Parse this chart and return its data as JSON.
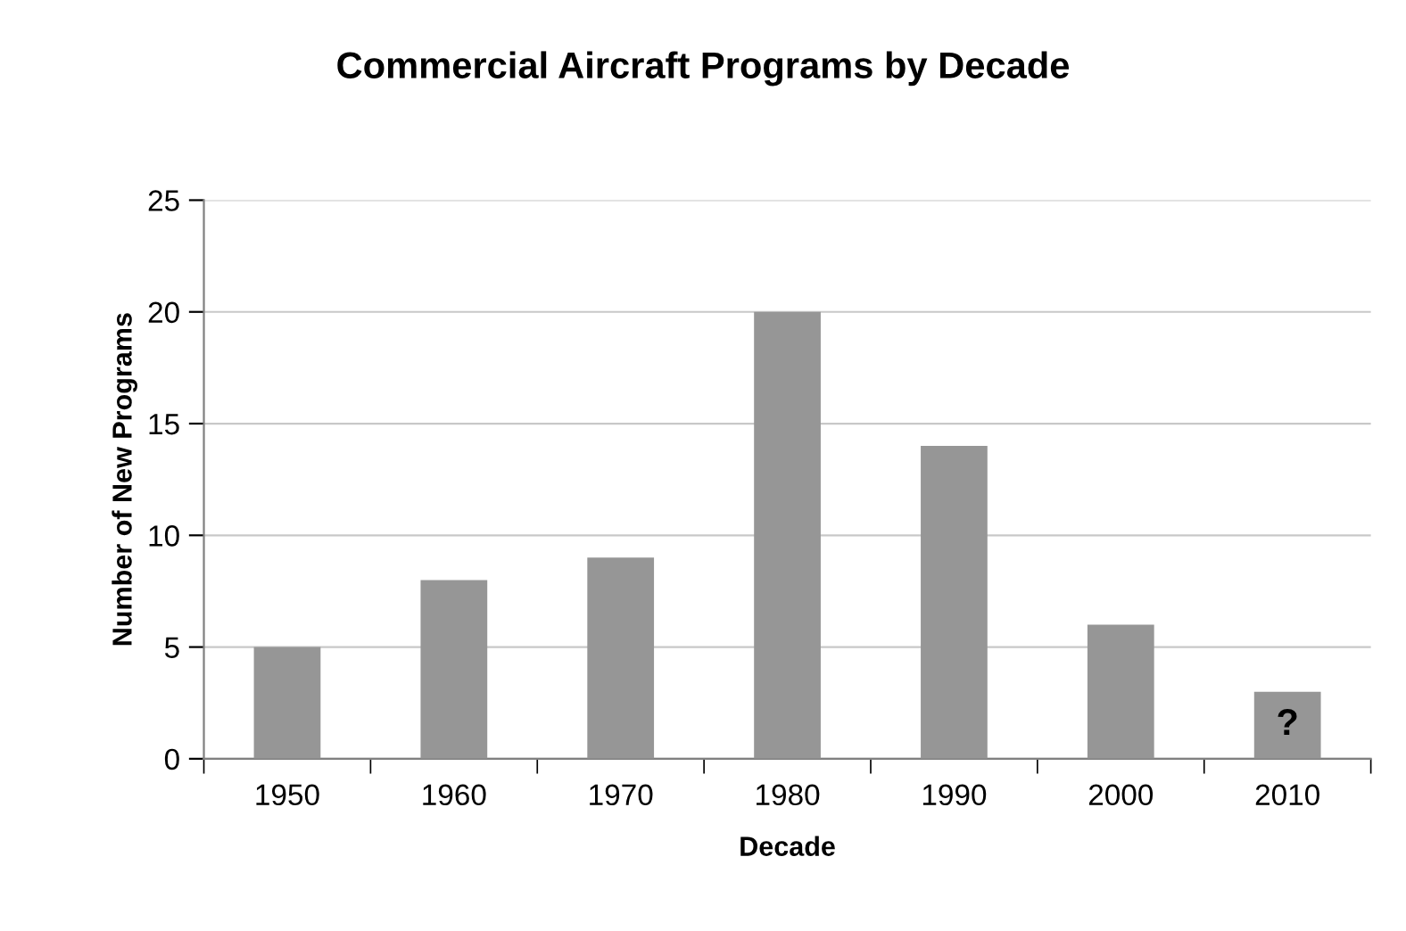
{
  "chart_data": {
    "type": "bar",
    "title": "Commercial Aircraft Programs by Decade",
    "xlabel": "Decade",
    "ylabel": "Number of New Programs",
    "categories": [
      "1950",
      "1960",
      "1970",
      "1980",
      "1990",
      "2000",
      "2010"
    ],
    "values": [
      5,
      8,
      9,
      20,
      14,
      6,
      3
    ],
    "color": "#969696",
    "ylim": [
      0,
      25
    ],
    "yticks": [
      0,
      5,
      10,
      15,
      20,
      25
    ],
    "grid": "y",
    "legend": false,
    "annotations": [
      "?"
    ]
  }
}
